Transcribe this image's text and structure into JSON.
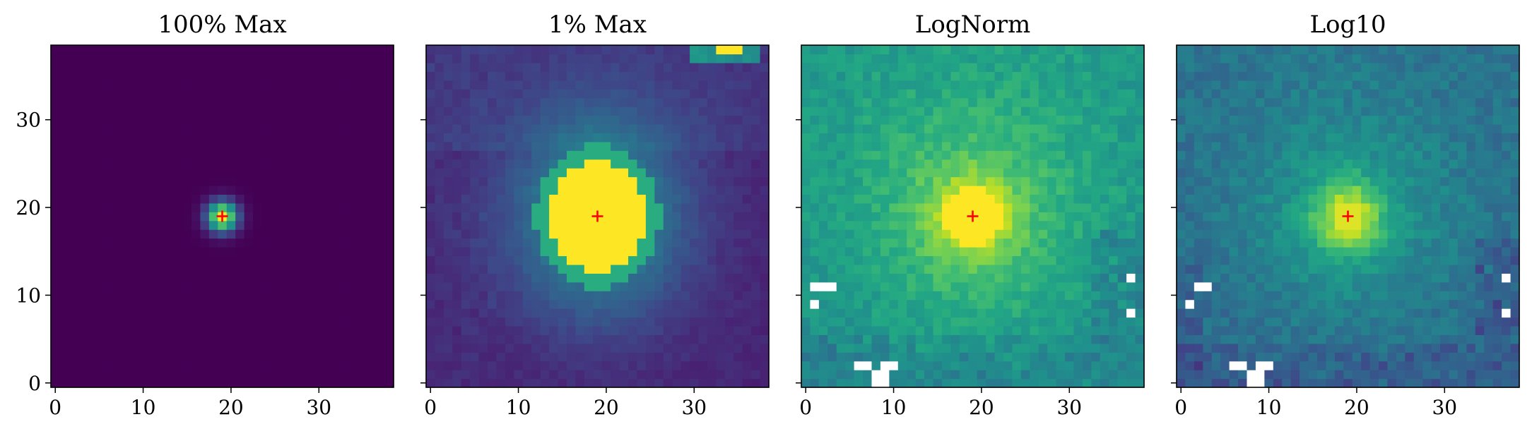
{
  "chart_data": [
    {
      "type": "heatmap",
      "title": "100% Max",
      "normalization": "linear, vmax = 100% of max",
      "colormap": "viridis",
      "xlim": [
        -0.5,
        38.5
      ],
      "ylim": [
        -0.5,
        38.5
      ],
      "x_ticks": [
        0,
        10,
        20,
        30
      ],
      "y_ticks": [
        0,
        10,
        20,
        30
      ],
      "source": {
        "x": 19,
        "y": 19,
        "sigma": 1.2,
        "peak": 1.0
      },
      "marker": {
        "x": 19,
        "y": 19,
        "symbol": "+",
        "color": "#ff0000"
      }
    },
    {
      "type": "heatmap",
      "title": "1% Max",
      "normalization": "linear, vmax = 1% of max (saturated)",
      "colormap": "viridis",
      "xlim": [
        -0.5,
        38.5
      ],
      "ylim": [
        -0.5,
        38.5
      ],
      "x_ticks": [
        0,
        10,
        20,
        30
      ],
      "y_ticks": [
        0,
        10,
        20,
        30
      ],
      "source": {
        "x": 19,
        "y": 19,
        "saturated_radius": 5.5
      },
      "secondary_source": {
        "x": 34,
        "y": 38
      },
      "marker": {
        "x": 19,
        "y": 19,
        "symbol": "+",
        "color": "#ff0000"
      }
    },
    {
      "type": "heatmap",
      "title": "LogNorm",
      "normalization": "logarithmic",
      "colormap": "viridis",
      "xlim": [
        -0.5,
        38.5
      ],
      "ylim": [
        -0.5,
        38.5
      ],
      "x_ticks": [
        0,
        10,
        20,
        30
      ],
      "y_ticks": [
        0,
        10,
        20,
        30
      ],
      "source": {
        "x": 19,
        "y": 19
      },
      "masked_pixels": [
        [
          1,
          11
        ],
        [
          2,
          11
        ],
        [
          3,
          11
        ],
        [
          1,
          9
        ],
        [
          6,
          2
        ],
        [
          7,
          2
        ],
        [
          8,
          1
        ],
        [
          9,
          1
        ],
        [
          9,
          2
        ],
        [
          10,
          2
        ],
        [
          8,
          0
        ],
        [
          9,
          0
        ],
        [
          37,
          12
        ],
        [
          37,
          8
        ]
      ],
      "marker": {
        "x": 19,
        "y": 19,
        "symbol": "+",
        "color": "#ff0000"
      }
    },
    {
      "type": "heatmap",
      "title": "Log10",
      "normalization": "log10 of data",
      "colormap": "viridis",
      "xlim": [
        -0.5,
        38.5
      ],
      "ylim": [
        -0.5,
        38.5
      ],
      "x_ticks": [
        0,
        10,
        20,
        30
      ],
      "y_ticks": [
        0,
        10,
        20,
        30
      ],
      "source": {
        "x": 19,
        "y": 19
      },
      "masked_pixels": [
        [
          2,
          11
        ],
        [
          3,
          11
        ],
        [
          1,
          9
        ],
        [
          6,
          2
        ],
        [
          7,
          2
        ],
        [
          8,
          1
        ],
        [
          9,
          1
        ],
        [
          9,
          2
        ],
        [
          10,
          2
        ],
        [
          8,
          0
        ],
        [
          9,
          0
        ],
        [
          37,
          12
        ],
        [
          37,
          8
        ]
      ],
      "marker": {
        "x": 19,
        "y": 19,
        "symbol": "+",
        "color": "#ff0000"
      }
    }
  ]
}
